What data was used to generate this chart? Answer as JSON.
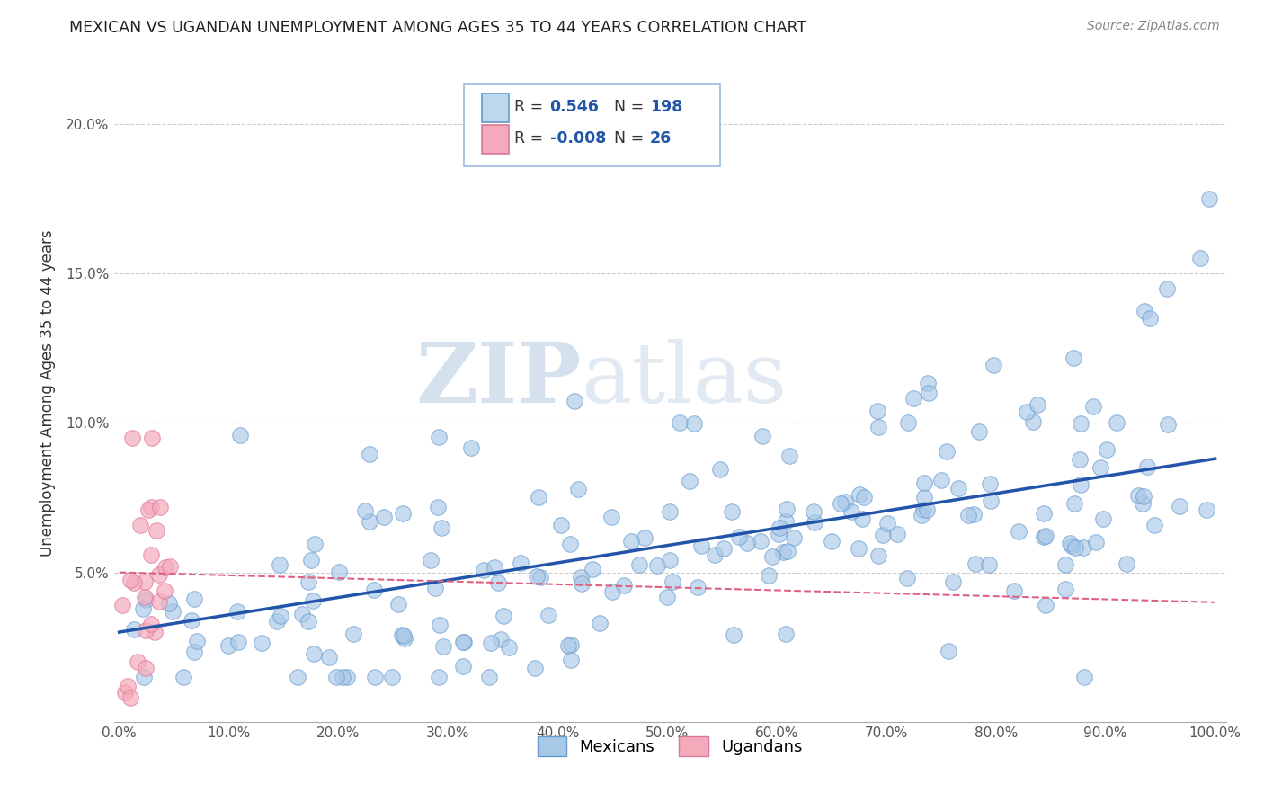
{
  "title": "MEXICAN VS UGANDAN UNEMPLOYMENT AMONG AGES 35 TO 44 YEARS CORRELATION CHART",
  "source": "Source: ZipAtlas.com",
  "ylabel": "Unemployment Among Ages 35 to 44 years",
  "xlim": [
    -0.005,
    1.01
  ],
  "ylim": [
    0.0,
    0.22
  ],
  "xticks": [
    0.0,
    0.1,
    0.2,
    0.3,
    0.4,
    0.5,
    0.6,
    0.7,
    0.8,
    0.9,
    1.0
  ],
  "xtick_labels": [
    "0.0%",
    "10.0%",
    "20.0%",
    "30.0%",
    "40.0%",
    "50.0%",
    "60.0%",
    "70.0%",
    "80.0%",
    "90.0%",
    "100.0%"
  ],
  "yticks": [
    0.05,
    0.1,
    0.15,
    0.2
  ],
  "ytick_labels": [
    "5.0%",
    "10.0%",
    "15.0%",
    "20.0%"
  ],
  "mexican_R": 0.546,
  "mexican_N": 198,
  "ugandan_R": -0.008,
  "ugandan_N": 26,
  "mexican_color": "#A8C8E8",
  "ugandan_color": "#F4AABA",
  "mexican_line_color": "#2255AA",
  "ugandan_line_color": "#E06080",
  "watermark_zip": "ZIP",
  "watermark_atlas": "atlas",
  "legend_label_mexican": "Mexicans",
  "legend_label_ugandan": "Ugandans",
  "mex_trend_x0": 0.0,
  "mex_trend_y0": 0.03,
  "mex_trend_x1": 1.0,
  "mex_trend_y1": 0.088,
  "uga_trend_x0": 0.0,
  "uga_trend_y0": 0.05,
  "uga_trend_x1": 1.0,
  "uga_trend_y1": 0.04
}
